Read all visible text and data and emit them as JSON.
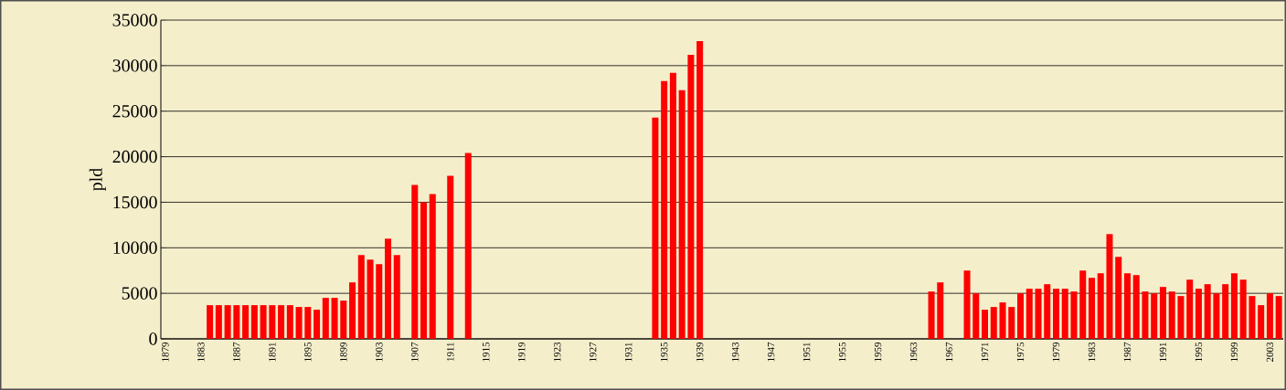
{
  "chart_data": {
    "type": "bar",
    "ylabel": "pld",
    "color": "#ff0000",
    "grid": "y",
    "ylim": [
      0,
      35000
    ],
    "yticks": [
      0,
      5000,
      10000,
      15000,
      20000,
      25000,
      30000,
      35000
    ],
    "categories": [
      "1879",
      null,
      null,
      null,
      "1883",
      null,
      null,
      null,
      "1887",
      null,
      null,
      null,
      "1891",
      null,
      null,
      null,
      "1895",
      null,
      null,
      null,
      "1899",
      null,
      null,
      null,
      "1903",
      null,
      null,
      null,
      "1907",
      null,
      null,
      null,
      "1911",
      null,
      null,
      null,
      "1915",
      null,
      null,
      null,
      "1919",
      null,
      null,
      null,
      "1923",
      null,
      null,
      null,
      "1927",
      null,
      null,
      null,
      "1931",
      null,
      null,
      null,
      "1935",
      null,
      null,
      null,
      "1939",
      null,
      null,
      null,
      "1943",
      null,
      null,
      null,
      "1947",
      null,
      null,
      null,
      "1951",
      null,
      null,
      null,
      "1955",
      null,
      null,
      null,
      "1959",
      null,
      null,
      null,
      "1963",
      null,
      null,
      null,
      "1967",
      null,
      null,
      null,
      "1971",
      null,
      null,
      null,
      "1975",
      null,
      null,
      null,
      "1979",
      null,
      null,
      null,
      "1983",
      null,
      null,
      null,
      "1987",
      null,
      null,
      null,
      "1991",
      null,
      null,
      null,
      "1995",
      null,
      null,
      null,
      "1999",
      null,
      null,
      null,
      "2003",
      null
    ],
    "values": [
      null,
      null,
      null,
      null,
      null,
      3700,
      3700,
      3700,
      3700,
      3700,
      3700,
      3700,
      3700,
      3700,
      3700,
      3500,
      3500,
      3200,
      4500,
      4500,
      4200,
      6200,
      9200,
      8700,
      8200,
      11000,
      9200,
      null,
      16900,
      15000,
      15900,
      null,
      17900,
      null,
      20400,
      null,
      null,
      null,
      null,
      null,
      null,
      null,
      null,
      null,
      null,
      null,
      null,
      null,
      null,
      null,
      null,
      null,
      null,
      null,
      null,
      24300,
      28300,
      29200,
      27300,
      31200,
      32700,
      null,
      null,
      null,
      null,
      null,
      null,
      null,
      null,
      null,
      null,
      null,
      null,
      null,
      null,
      null,
      null,
      null,
      null,
      null,
      null,
      null,
      null,
      null,
      null,
      null,
      5200,
      6200,
      null,
      null,
      7500,
      5000,
      3200,
      3500,
      4000,
      3500,
      5000,
      5500,
      5500,
      6000,
      5500,
      5500,
      5200,
      7500,
      6700,
      7200,
      11500,
      9000,
      7200,
      7000,
      5200,
      5000,
      5700,
      5200,
      4700,
      6500,
      5500,
      6000,
      5000,
      6000,
      7200,
      6500,
      4700,
      3700,
      5000,
      4700
    ]
  }
}
